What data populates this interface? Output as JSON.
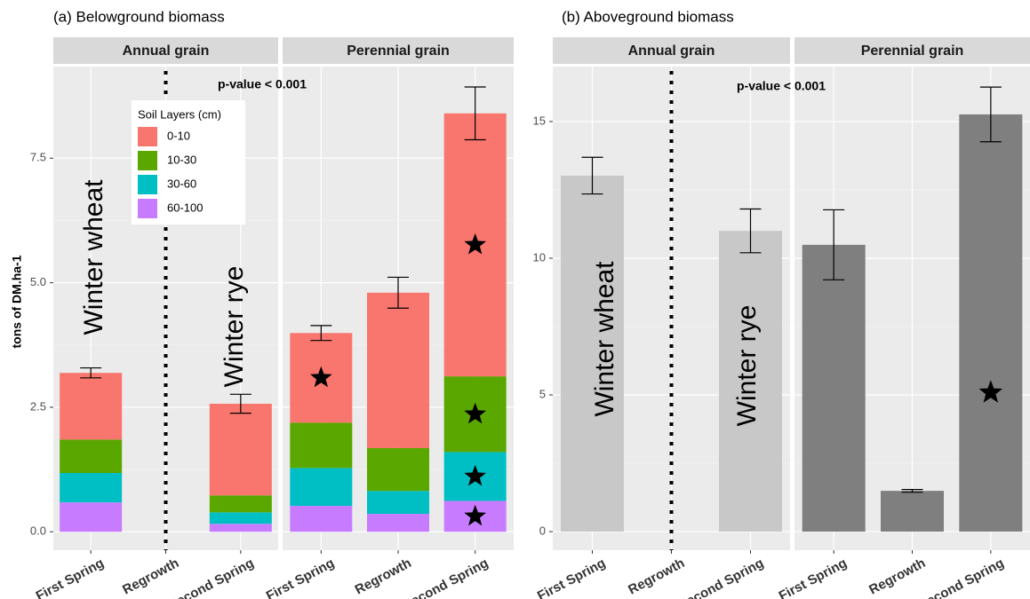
{
  "chart_data": [
    {
      "type": "stacked-bar",
      "title": "(a) Belowground biomass",
      "ylabel": "tons of DM.ha-1",
      "facets": [
        "Annual grain",
        "Perennial grain"
      ],
      "categories": [
        "First Spring",
        "Regrowth",
        "Second Spring",
        "First Spring",
        "Regrowth",
        "Second Spring"
      ],
      "series": [
        {
          "name": "60-100",
          "color": "#c77cff",
          "values": [
            0.59,
            null,
            0.16,
            0.52,
            0.36,
            0.62
          ],
          "starred": [
            false,
            false,
            false,
            false,
            false,
            true
          ]
        },
        {
          "name": "30-60",
          "color": "#00bfc4",
          "values": [
            0.59,
            null,
            0.23,
            0.76,
            0.46,
            0.98
          ],
          "starred": [
            false,
            false,
            false,
            false,
            false,
            true
          ]
        },
        {
          "name": "10-30",
          "color": "#5aa700",
          "values": [
            0.67,
            null,
            0.34,
            0.91,
            0.86,
            1.52
          ],
          "starred": [
            false,
            false,
            false,
            false,
            false,
            true
          ]
        },
        {
          "name": "0-10",
          "color": "#f8766d",
          "values": [
            1.34,
            null,
            1.84,
            1.8,
            3.12,
            5.28
          ],
          "starred": [
            false,
            false,
            false,
            true,
            false,
            true
          ]
        }
      ],
      "errors": [
        0.1,
        null,
        0.19,
        0.15,
        0.31,
        0.53
      ],
      "legend_title": "Soil Layers (cm)",
      "annotations": [
        "p-value < 0.001",
        "Winter wheat",
        "Winter rye"
      ],
      "ylim": [
        -0.37,
        9.34
      ],
      "yticks": [
        {
          "value": 0,
          "label": "0.0"
        },
        2.5,
        {
          "value": 5,
          "label": "5.0"
        },
        7.5
      ],
      "grid": true
    },
    {
      "type": "bar",
      "title": "(b) Aboveground biomass",
      "facets": [
        "Annual grain",
        "Perennial grain"
      ],
      "facet_colors": [
        "#c8c8c8",
        "#7f7f7f"
      ],
      "categories": [
        "First Spring",
        "Regrowth",
        "Second Spring",
        "First Spring",
        "Regrowth",
        "Second Spring"
      ],
      "values": [
        13.02,
        null,
        11.0,
        10.49,
        1.49,
        15.26
      ],
      "errors": [
        0.67,
        null,
        0.8,
        1.28,
        0.05,
        1.0
      ],
      "starred": [
        false,
        false,
        false,
        false,
        false,
        true
      ],
      "annotations": [
        "p-value < 0.001",
        "Winter wheat",
        "Winter rye"
      ],
      "ylim": [
        -0.68,
        17.01
      ],
      "yticks": [
        0,
        5,
        10,
        15
      ],
      "grid": true
    }
  ]
}
